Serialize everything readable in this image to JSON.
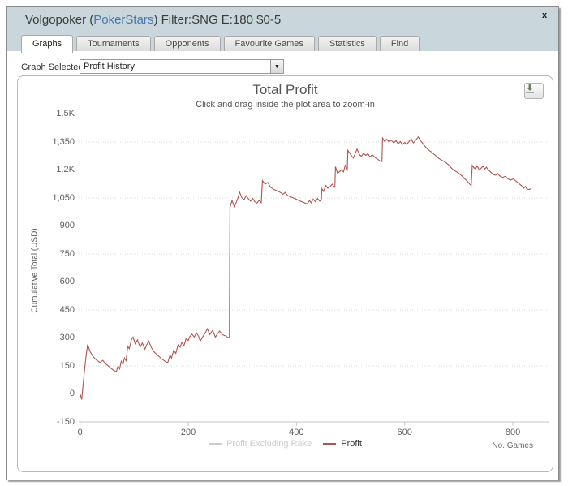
{
  "window": {
    "title_prefix": "Volgopoker (",
    "title_link": "PokerStars",
    "title_suffix": ") Filter:SNG E:180 $0-5",
    "close_label": "x"
  },
  "tabs": [
    {
      "label": "Graphs",
      "active": true
    },
    {
      "label": "Tournaments",
      "active": false
    },
    {
      "label": "Opponents",
      "active": false
    },
    {
      "label": "Favourite Games",
      "active": false
    },
    {
      "label": "Statistics",
      "active": false
    },
    {
      "label": "Find",
      "active": false
    }
  ],
  "graph_selector": {
    "label": "Graph Selected:",
    "value": "Profit History",
    "dropdown_arrow": "▼"
  },
  "export_button": {
    "icon": "download-icon"
  },
  "chart_data": {
    "type": "line",
    "title": "Total Profit",
    "subtitle": "Click and drag inside the plot area to zoom-in",
    "ylabel": "Cumulative Total (USD)",
    "xlabel": "No. Games",
    "xlim": [
      0,
      865
    ],
    "ylim": [
      -150,
      1500
    ],
    "grid": "dotted horizontal gridlines, no vertical grid",
    "legend_position": "bottom-center",
    "x_ticks": [
      {
        "value": 0,
        "label": "0"
      },
      {
        "value": 200,
        "label": "200"
      },
      {
        "value": 400,
        "label": "400"
      },
      {
        "value": 600,
        "label": "600"
      },
      {
        "value": 800,
        "label": "800"
      }
    ],
    "y_ticks": [
      {
        "value": -150,
        "label": "-150"
      },
      {
        "value": 0,
        "label": "0"
      },
      {
        "value": 150,
        "label": "150"
      },
      {
        "value": 300,
        "label": "300"
      },
      {
        "value": 450,
        "label": "450"
      },
      {
        "value": 600,
        "label": "600"
      },
      {
        "value": 750,
        "label": "750"
      },
      {
        "value": 900,
        "label": "900"
      },
      {
        "value": 1050,
        "label": "1,050"
      },
      {
        "value": 1200,
        "label": "1.2K"
      },
      {
        "value": 1350,
        "label": "1,350"
      },
      {
        "value": 1500,
        "label": "1.5K"
      }
    ],
    "series": [
      {
        "name": "Profit Excluding Rake",
        "color": "#cccccc",
        "visible": false,
        "points": []
      },
      {
        "name": "Profit",
        "color": "#b0544d",
        "visible": true,
        "points": [
          [
            0,
            0
          ],
          [
            1,
            -10
          ],
          [
            3,
            -30
          ],
          [
            5,
            30
          ],
          [
            8,
            120
          ],
          [
            11,
            200
          ],
          [
            14,
            265
          ],
          [
            18,
            230
          ],
          [
            24,
            200
          ],
          [
            30,
            182
          ],
          [
            37,
            168
          ],
          [
            42,
            180
          ],
          [
            47,
            162
          ],
          [
            54,
            145
          ],
          [
            61,
            128
          ],
          [
            67,
            118
          ],
          [
            70,
            150
          ],
          [
            73,
            134
          ],
          [
            76,
            175
          ],
          [
            79,
            157
          ],
          [
            82,
            192
          ],
          [
            85,
            178
          ],
          [
            88,
            255
          ],
          [
            91,
            242
          ],
          [
            95,
            290
          ],
          [
            98,
            305
          ],
          [
            102,
            269
          ],
          [
            106,
            290
          ],
          [
            111,
            250
          ],
          [
            115,
            273
          ],
          [
            120,
            240
          ],
          [
            123,
            262
          ],
          [
            127,
            283
          ],
          [
            132,
            247
          ],
          [
            137,
            225
          ],
          [
            142,
            211
          ],
          [
            150,
            190
          ],
          [
            156,
            177
          ],
          [
            162,
            167
          ],
          [
            166,
            207
          ],
          [
            169,
            193
          ],
          [
            173,
            233
          ],
          [
            177,
            218
          ],
          [
            181,
            262
          ],
          [
            185,
            250
          ],
          [
            188,
            276
          ],
          [
            192,
            258
          ],
          [
            196,
            298
          ],
          [
            200,
            285
          ],
          [
            203,
            308
          ],
          [
            207,
            320
          ],
          [
            211,
            305
          ],
          [
            215,
            327
          ],
          [
            219,
            310
          ],
          [
            222,
            283
          ],
          [
            228,
            312
          ],
          [
            232,
            330
          ],
          [
            235,
            349
          ],
          [
            240,
            318
          ],
          [
            245,
            341
          ],
          [
            250,
            305
          ],
          [
            254,
            322
          ],
          [
            258,
            337
          ],
          [
            263,
            318
          ],
          [
            268,
            312
          ],
          [
            273,
            303
          ],
          [
            276,
            300
          ],
          [
            277,
            1000
          ],
          [
            281,
            1037
          ],
          [
            285,
            1003
          ],
          [
            288,
            1022
          ],
          [
            291,
            1044
          ],
          [
            295,
            1080
          ],
          [
            299,
            1052
          ],
          [
            303,
            1040
          ],
          [
            307,
            1062
          ],
          [
            311,
            1046
          ],
          [
            315,
            1033
          ],
          [
            319,
            1048
          ],
          [
            323,
            1030
          ],
          [
            327,
            1022
          ],
          [
            331,
            1038
          ],
          [
            335,
            1025
          ],
          [
            337,
            1143
          ],
          [
            342,
            1124
          ],
          [
            347,
            1133
          ],
          [
            352,
            1108
          ],
          [
            358,
            1096
          ],
          [
            364,
            1088
          ],
          [
            370,
            1080
          ],
          [
            375,
            1070
          ],
          [
            379,
            1080
          ],
          [
            384,
            1062
          ],
          [
            390,
            1055
          ],
          [
            396,
            1048
          ],
          [
            402,
            1040
          ],
          [
            408,
            1032
          ],
          [
            414,
            1025
          ],
          [
            420,
            1018
          ],
          [
            424,
            1037
          ],
          [
            427,
            1024
          ],
          [
            431,
            1044
          ],
          [
            435,
            1030
          ],
          [
            439,
            1047
          ],
          [
            443,
            1033
          ],
          [
            446,
            1040
          ],
          [
            447,
            1100
          ],
          [
            450,
            1085
          ],
          [
            454,
            1117
          ],
          [
            458,
            1102
          ],
          [
            462,
            1110
          ],
          [
            466,
            1124
          ],
          [
            470,
            1108
          ],
          [
            471,
            1108
          ],
          [
            472,
            1218
          ],
          [
            476,
            1182
          ],
          [
            483,
            1200
          ],
          [
            487,
            1190
          ],
          [
            490,
            1225
          ],
          [
            494,
            1203
          ],
          [
            495,
            1305
          ],
          [
            502,
            1275
          ],
          [
            505,
            1264
          ],
          [
            509,
            1290
          ],
          [
            512,
            1312
          ],
          [
            517,
            1280
          ],
          [
            520,
            1273
          ],
          [
            524,
            1290
          ],
          [
            528,
            1278
          ],
          [
            532,
            1288
          ],
          [
            536,
            1270
          ],
          [
            540,
            1282
          ],
          [
            545,
            1268
          ],
          [
            550,
            1258
          ],
          [
            555,
            1247
          ],
          [
            558,
            1245
          ],
          [
            559,
            1371
          ],
          [
            563,
            1352
          ],
          [
            567,
            1365
          ],
          [
            571,
            1350
          ],
          [
            575,
            1360
          ],
          [
            580,
            1345
          ],
          [
            584,
            1357
          ],
          [
            588,
            1340
          ],
          [
            592,
            1352
          ],
          [
            596,
            1337
          ],
          [
            600,
            1348
          ],
          [
            604,
            1335
          ],
          [
            608,
            1352
          ],
          [
            612,
            1366
          ],
          [
            616,
            1345
          ],
          [
            620,
            1358
          ],
          [
            625,
            1377
          ],
          [
            630,
            1355
          ],
          [
            636,
            1332
          ],
          [
            643,
            1310
          ],
          [
            650,
            1295
          ],
          [
            657,
            1278
          ],
          [
            663,
            1262
          ],
          [
            670,
            1250
          ],
          [
            676,
            1240
          ],
          [
            681,
            1228
          ],
          [
            686,
            1212
          ],
          [
            690,
            1200
          ],
          [
            695,
            1192
          ],
          [
            700,
            1182
          ],
          [
            706,
            1168
          ],
          [
            711,
            1153
          ],
          [
            716,
            1139
          ],
          [
            720,
            1125
          ],
          [
            723,
            1117
          ],
          [
            725,
            1225
          ],
          [
            728,
            1212
          ],
          [
            731,
            1205
          ],
          [
            734,
            1222
          ],
          [
            738,
            1200
          ],
          [
            742,
            1212
          ],
          [
            745,
            1221
          ],
          [
            748,
            1205
          ],
          [
            751,
            1215
          ],
          [
            755,
            1200
          ],
          [
            760,
            1186
          ],
          [
            764,
            1175
          ],
          [
            768,
            1172
          ],
          [
            772,
            1180
          ],
          [
            776,
            1168
          ],
          [
            781,
            1160
          ],
          [
            786,
            1166
          ],
          [
            791,
            1152
          ],
          [
            796,
            1146
          ],
          [
            801,
            1152
          ],
          [
            806,
            1140
          ],
          [
            811,
            1128
          ],
          [
            816,
            1116
          ],
          [
            820,
            1102
          ],
          [
            823,
            1112
          ],
          [
            826,
            1098
          ],
          [
            830,
            1095
          ],
          [
            833,
            1100
          ]
        ]
      }
    ]
  }
}
